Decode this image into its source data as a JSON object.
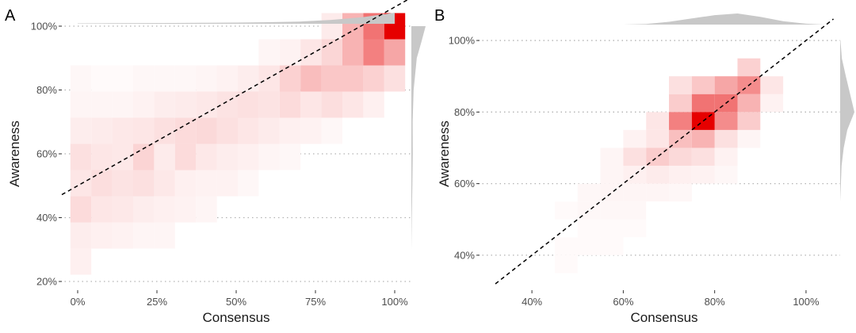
{
  "chart_data": [
    {
      "panel": "A",
      "type": "heatmap",
      "xlabel": "Consensus",
      "ylabel": "Awareness",
      "xlim": [
        0,
        1
      ],
      "ylim": [
        0.2,
        1
      ],
      "xticks": [
        "0%",
        "25%",
        "50%",
        "75%",
        "100%"
      ],
      "yticks": [
        "20%",
        "40%",
        "60%",
        "80%",
        "100%"
      ],
      "bin_width": 0.066,
      "bin_height": 0.082,
      "cells": [
        [
          1.0,
          1.0,
          1.0
        ],
        [
          0.934,
          1.0,
          0.55
        ],
        [
          0.868,
          1.0,
          0.3
        ],
        [
          0.802,
          1.0,
          0.08
        ],
        [
          1.0,
          0.918,
          0.35
        ],
        [
          0.934,
          0.918,
          0.5
        ],
        [
          0.868,
          0.918,
          0.3
        ],
        [
          0.802,
          0.918,
          0.16
        ],
        [
          0.736,
          0.918,
          0.1
        ],
        [
          0.67,
          0.918,
          0.05
        ],
        [
          0.604,
          0.918,
          0.04
        ],
        [
          1.0,
          0.836,
          0.12
        ],
        [
          0.934,
          0.836,
          0.18
        ],
        [
          0.868,
          0.836,
          0.22
        ],
        [
          0.802,
          0.836,
          0.22
        ],
        [
          0.736,
          0.836,
          0.26
        ],
        [
          0.67,
          0.836,
          0.18
        ],
        [
          0.604,
          0.836,
          0.1
        ],
        [
          0.538,
          0.836,
          0.07
        ],
        [
          0.472,
          0.836,
          0.05
        ],
        [
          0.406,
          0.836,
          0.04
        ],
        [
          0.34,
          0.836,
          0.03
        ],
        [
          0.274,
          0.836,
          0.03
        ],
        [
          0.208,
          0.836,
          0.03
        ],
        [
          0.142,
          0.836,
          0.02
        ],
        [
          0.076,
          0.836,
          0.02
        ],
        [
          0.01,
          0.836,
          0.03
        ],
        [
          0.934,
          0.754,
          0.06
        ],
        [
          0.868,
          0.754,
          0.1
        ],
        [
          0.802,
          0.754,
          0.13
        ],
        [
          0.736,
          0.754,
          0.1
        ],
        [
          0.67,
          0.754,
          0.14
        ],
        [
          0.604,
          0.754,
          0.11
        ],
        [
          0.538,
          0.754,
          0.12
        ],
        [
          0.472,
          0.754,
          0.11
        ],
        [
          0.406,
          0.754,
          0.09
        ],
        [
          0.34,
          0.754,
          0.08
        ],
        [
          0.274,
          0.754,
          0.07
        ],
        [
          0.208,
          0.754,
          0.05
        ],
        [
          0.142,
          0.754,
          0.04
        ],
        [
          0.076,
          0.754,
          0.04
        ],
        [
          0.01,
          0.754,
          0.04
        ],
        [
          0.802,
          0.672,
          0.03
        ],
        [
          0.736,
          0.672,
          0.05
        ],
        [
          0.67,
          0.672,
          0.06
        ],
        [
          0.604,
          0.672,
          0.08
        ],
        [
          0.538,
          0.672,
          0.1
        ],
        [
          0.472,
          0.672,
          0.12
        ],
        [
          0.406,
          0.672,
          0.15
        ],
        [
          0.34,
          0.672,
          0.14
        ],
        [
          0.274,
          0.672,
          0.12
        ],
        [
          0.208,
          0.672,
          0.1
        ],
        [
          0.142,
          0.672,
          0.09
        ],
        [
          0.076,
          0.672,
          0.08
        ],
        [
          0.01,
          0.672,
          0.07
        ],
        [
          0.67,
          0.59,
          0.03
        ],
        [
          0.604,
          0.59,
          0.04
        ],
        [
          0.538,
          0.59,
          0.06
        ],
        [
          0.472,
          0.59,
          0.07
        ],
        [
          0.406,
          0.59,
          0.09
        ],
        [
          0.34,
          0.59,
          0.14
        ],
        [
          0.274,
          0.59,
          0.08
        ],
        [
          0.208,
          0.59,
          0.17
        ],
        [
          0.142,
          0.59,
          0.09
        ],
        [
          0.076,
          0.59,
          0.1
        ],
        [
          0.01,
          0.59,
          0.12
        ],
        [
          0.538,
          0.508,
          0.03
        ],
        [
          0.472,
          0.508,
          0.05
        ],
        [
          0.406,
          0.508,
          0.05
        ],
        [
          0.34,
          0.508,
          0.06
        ],
        [
          0.274,
          0.508,
          0.09
        ],
        [
          0.208,
          0.508,
          0.12
        ],
        [
          0.142,
          0.508,
          0.11
        ],
        [
          0.076,
          0.508,
          0.13
        ],
        [
          0.01,
          0.508,
          0.1
        ],
        [
          0.406,
          0.426,
          0.04
        ],
        [
          0.34,
          0.426,
          0.05
        ],
        [
          0.274,
          0.426,
          0.06
        ],
        [
          0.208,
          0.426,
          0.07
        ],
        [
          0.142,
          0.426,
          0.09
        ],
        [
          0.076,
          0.426,
          0.1
        ],
        [
          0.01,
          0.426,
          0.14
        ],
        [
          0.274,
          0.344,
          0.04
        ],
        [
          0.208,
          0.344,
          0.04
        ],
        [
          0.142,
          0.344,
          0.05
        ],
        [
          0.076,
          0.344,
          0.06
        ],
        [
          0.01,
          0.344,
          0.07
        ],
        [
          0.01,
          0.262,
          0.06
        ]
      ],
      "reference_line": {
        "slope": 0.56,
        "intercept": 0.5
      },
      "top_density": [
        [
          0.0,
          0.04
        ],
        [
          0.1,
          0.05
        ],
        [
          0.2,
          0.06
        ],
        [
          0.3,
          0.07
        ],
        [
          0.4,
          0.09
        ],
        [
          0.5,
          0.11
        ],
        [
          0.6,
          0.14
        ],
        [
          0.7,
          0.2
        ],
        [
          0.8,
          0.35
        ],
        [
          0.9,
          0.6
        ],
        [
          1.0,
          1.0
        ]
      ],
      "right_density": [
        [
          0.3,
          0.0
        ],
        [
          0.4,
          0.03
        ],
        [
          0.5,
          0.07
        ],
        [
          0.6,
          0.1
        ],
        [
          0.7,
          0.09
        ],
        [
          0.8,
          0.16
        ],
        [
          0.9,
          0.38
        ],
        [
          0.95,
          0.7
        ],
        [
          1.0,
          1.0
        ]
      ]
    },
    {
      "panel": "B",
      "type": "heatmap",
      "xlabel": "Consensus",
      "ylabel": "Awareness",
      "xlim": [
        0.32,
        1.04
      ],
      "ylim": [
        0.32,
        1.04
      ],
      "xticks": [
        "40%",
        "60%",
        "80%",
        "100%"
      ],
      "yticks": [
        "40%",
        "60%",
        "80%",
        "100%"
      ],
      "bin_width": 0.05,
      "bin_height": 0.05,
      "cells": [
        [
          0.875,
          0.925,
          0.18
        ],
        [
          0.825,
          0.875,
          0.35
        ],
        [
          0.775,
          0.875,
          0.22
        ],
        [
          0.725,
          0.875,
          0.12
        ],
        [
          0.875,
          0.875,
          0.45
        ],
        [
          0.925,
          0.875,
          0.1
        ],
        [
          0.825,
          0.825,
          0.55
        ],
        [
          0.775,
          0.825,
          0.55
        ],
        [
          0.875,
          0.825,
          0.3
        ],
        [
          0.725,
          0.825,
          0.2
        ],
        [
          0.925,
          0.825,
          0.05
        ],
        [
          0.775,
          0.775,
          1.0
        ],
        [
          0.725,
          0.775,
          0.5
        ],
        [
          0.825,
          0.775,
          0.45
        ],
        [
          0.875,
          0.775,
          0.2
        ],
        [
          0.675,
          0.775,
          0.1
        ],
        [
          0.775,
          0.725,
          0.3
        ],
        [
          0.725,
          0.725,
          0.25
        ],
        [
          0.825,
          0.725,
          0.12
        ],
        [
          0.675,
          0.725,
          0.1
        ],
        [
          0.625,
          0.725,
          0.05
        ],
        [
          0.875,
          0.725,
          0.04
        ],
        [
          0.675,
          0.675,
          0.2
        ],
        [
          0.725,
          0.675,
          0.15
        ],
        [
          0.775,
          0.675,
          0.12
        ],
        [
          0.625,
          0.675,
          0.12
        ],
        [
          0.825,
          0.675,
          0.05
        ],
        [
          0.575,
          0.675,
          0.04
        ],
        [
          0.625,
          0.625,
          0.06
        ],
        [
          0.675,
          0.625,
          0.08
        ],
        [
          0.725,
          0.625,
          0.06
        ],
        [
          0.775,
          0.625,
          0.05
        ],
        [
          0.575,
          0.625,
          0.04
        ],
        [
          0.825,
          0.625,
          0.03
        ],
        [
          0.575,
          0.575,
          0.04
        ],
        [
          0.625,
          0.575,
          0.04
        ],
        [
          0.675,
          0.575,
          0.04
        ],
        [
          0.525,
          0.575,
          0.03
        ],
        [
          0.725,
          0.575,
          0.03
        ],
        [
          0.525,
          0.525,
          0.03
        ],
        [
          0.575,
          0.525,
          0.03
        ],
        [
          0.625,
          0.525,
          0.03
        ],
        [
          0.475,
          0.525,
          0.02
        ],
        [
          0.525,
          0.475,
          0.02
        ],
        [
          0.575,
          0.475,
          0.02
        ],
        [
          0.625,
          0.475,
          0.02
        ],
        [
          0.475,
          0.425,
          0.02
        ],
        [
          0.525,
          0.425,
          0.02
        ],
        [
          0.575,
          0.425,
          0.02
        ],
        [
          0.475,
          0.375,
          0.02
        ]
      ],
      "reference_line": {
        "slope": 1.0,
        "intercept": 0.0
      },
      "top_density": [
        [
          0.6,
          0.0
        ],
        [
          0.65,
          0.05
        ],
        [
          0.7,
          0.25
        ],
        [
          0.75,
          0.55
        ],
        [
          0.8,
          0.85
        ],
        [
          0.85,
          1.0
        ],
        [
          0.9,
          0.7
        ],
        [
          0.95,
          0.3
        ],
        [
          1.0,
          0.08
        ],
        [
          1.04,
          0.0
        ]
      ],
      "right_density": [
        [
          0.55,
          0.0
        ],
        [
          0.65,
          0.1
        ],
        [
          0.7,
          0.25
        ],
        [
          0.75,
          0.5
        ],
        [
          0.8,
          1.0
        ],
        [
          0.85,
          0.7
        ],
        [
          0.9,
          0.4
        ],
        [
          0.95,
          0.12
        ],
        [
          1.0,
          0.02
        ]
      ]
    }
  ],
  "colors": {
    "cell_max": "#e60000",
    "density_fill": "#c8c8c8",
    "grid": "#b3b3b3",
    "ref_line": "#000000"
  }
}
